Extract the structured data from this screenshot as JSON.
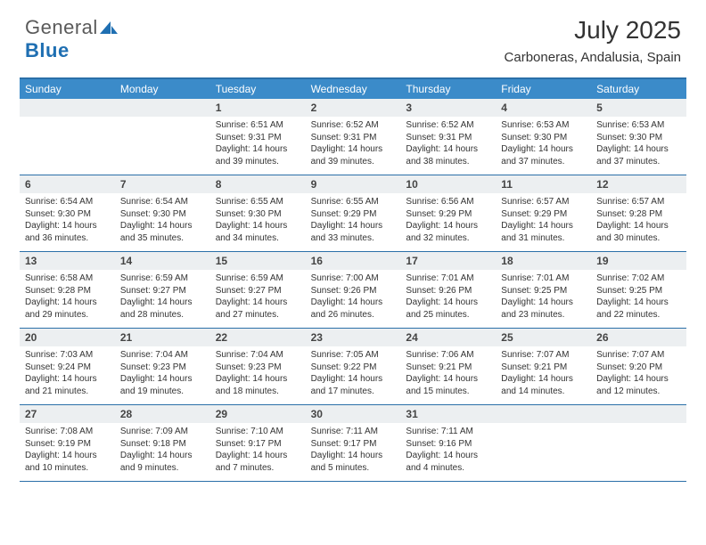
{
  "logo": {
    "text_gray": "General",
    "text_blue": "Blue",
    "icon_color": "#1f6fb2"
  },
  "title": "July 2025",
  "location": "Carboneras, Andalusia, Spain",
  "colors": {
    "header_bg": "#3b8bc9",
    "header_text": "#ffffff",
    "rule": "#2a6fa8",
    "daynum_bg": "#eceff1",
    "text": "#333333"
  },
  "day_names": [
    "Sunday",
    "Monday",
    "Tuesday",
    "Wednesday",
    "Thursday",
    "Friday",
    "Saturday"
  ],
  "weeks": [
    [
      {
        "n": "",
        "sr": "",
        "ss": "",
        "dl": ""
      },
      {
        "n": "",
        "sr": "",
        "ss": "",
        "dl": ""
      },
      {
        "n": "1",
        "sr": "Sunrise: 6:51 AM",
        "ss": "Sunset: 9:31 PM",
        "dl": "Daylight: 14 hours and 39 minutes."
      },
      {
        "n": "2",
        "sr": "Sunrise: 6:52 AM",
        "ss": "Sunset: 9:31 PM",
        "dl": "Daylight: 14 hours and 39 minutes."
      },
      {
        "n": "3",
        "sr": "Sunrise: 6:52 AM",
        "ss": "Sunset: 9:31 PM",
        "dl": "Daylight: 14 hours and 38 minutes."
      },
      {
        "n": "4",
        "sr": "Sunrise: 6:53 AM",
        "ss": "Sunset: 9:30 PM",
        "dl": "Daylight: 14 hours and 37 minutes."
      },
      {
        "n": "5",
        "sr": "Sunrise: 6:53 AM",
        "ss": "Sunset: 9:30 PM",
        "dl": "Daylight: 14 hours and 37 minutes."
      }
    ],
    [
      {
        "n": "6",
        "sr": "Sunrise: 6:54 AM",
        "ss": "Sunset: 9:30 PM",
        "dl": "Daylight: 14 hours and 36 minutes."
      },
      {
        "n": "7",
        "sr": "Sunrise: 6:54 AM",
        "ss": "Sunset: 9:30 PM",
        "dl": "Daylight: 14 hours and 35 minutes."
      },
      {
        "n": "8",
        "sr": "Sunrise: 6:55 AM",
        "ss": "Sunset: 9:30 PM",
        "dl": "Daylight: 14 hours and 34 minutes."
      },
      {
        "n": "9",
        "sr": "Sunrise: 6:55 AM",
        "ss": "Sunset: 9:29 PM",
        "dl": "Daylight: 14 hours and 33 minutes."
      },
      {
        "n": "10",
        "sr": "Sunrise: 6:56 AM",
        "ss": "Sunset: 9:29 PM",
        "dl": "Daylight: 14 hours and 32 minutes."
      },
      {
        "n": "11",
        "sr": "Sunrise: 6:57 AM",
        "ss": "Sunset: 9:29 PM",
        "dl": "Daylight: 14 hours and 31 minutes."
      },
      {
        "n": "12",
        "sr": "Sunrise: 6:57 AM",
        "ss": "Sunset: 9:28 PM",
        "dl": "Daylight: 14 hours and 30 minutes."
      }
    ],
    [
      {
        "n": "13",
        "sr": "Sunrise: 6:58 AM",
        "ss": "Sunset: 9:28 PM",
        "dl": "Daylight: 14 hours and 29 minutes."
      },
      {
        "n": "14",
        "sr": "Sunrise: 6:59 AM",
        "ss": "Sunset: 9:27 PM",
        "dl": "Daylight: 14 hours and 28 minutes."
      },
      {
        "n": "15",
        "sr": "Sunrise: 6:59 AM",
        "ss": "Sunset: 9:27 PM",
        "dl": "Daylight: 14 hours and 27 minutes."
      },
      {
        "n": "16",
        "sr": "Sunrise: 7:00 AM",
        "ss": "Sunset: 9:26 PM",
        "dl": "Daylight: 14 hours and 26 minutes."
      },
      {
        "n": "17",
        "sr": "Sunrise: 7:01 AM",
        "ss": "Sunset: 9:26 PM",
        "dl": "Daylight: 14 hours and 25 minutes."
      },
      {
        "n": "18",
        "sr": "Sunrise: 7:01 AM",
        "ss": "Sunset: 9:25 PM",
        "dl": "Daylight: 14 hours and 23 minutes."
      },
      {
        "n": "19",
        "sr": "Sunrise: 7:02 AM",
        "ss": "Sunset: 9:25 PM",
        "dl": "Daylight: 14 hours and 22 minutes."
      }
    ],
    [
      {
        "n": "20",
        "sr": "Sunrise: 7:03 AM",
        "ss": "Sunset: 9:24 PM",
        "dl": "Daylight: 14 hours and 21 minutes."
      },
      {
        "n": "21",
        "sr": "Sunrise: 7:04 AM",
        "ss": "Sunset: 9:23 PM",
        "dl": "Daylight: 14 hours and 19 minutes."
      },
      {
        "n": "22",
        "sr": "Sunrise: 7:04 AM",
        "ss": "Sunset: 9:23 PM",
        "dl": "Daylight: 14 hours and 18 minutes."
      },
      {
        "n": "23",
        "sr": "Sunrise: 7:05 AM",
        "ss": "Sunset: 9:22 PM",
        "dl": "Daylight: 14 hours and 17 minutes."
      },
      {
        "n": "24",
        "sr": "Sunrise: 7:06 AM",
        "ss": "Sunset: 9:21 PM",
        "dl": "Daylight: 14 hours and 15 minutes."
      },
      {
        "n": "25",
        "sr": "Sunrise: 7:07 AM",
        "ss": "Sunset: 9:21 PM",
        "dl": "Daylight: 14 hours and 14 minutes."
      },
      {
        "n": "26",
        "sr": "Sunrise: 7:07 AM",
        "ss": "Sunset: 9:20 PM",
        "dl": "Daylight: 14 hours and 12 minutes."
      }
    ],
    [
      {
        "n": "27",
        "sr": "Sunrise: 7:08 AM",
        "ss": "Sunset: 9:19 PM",
        "dl": "Daylight: 14 hours and 10 minutes."
      },
      {
        "n": "28",
        "sr": "Sunrise: 7:09 AM",
        "ss": "Sunset: 9:18 PM",
        "dl": "Daylight: 14 hours and 9 minutes."
      },
      {
        "n": "29",
        "sr": "Sunrise: 7:10 AM",
        "ss": "Sunset: 9:17 PM",
        "dl": "Daylight: 14 hours and 7 minutes."
      },
      {
        "n": "30",
        "sr": "Sunrise: 7:11 AM",
        "ss": "Sunset: 9:17 PM",
        "dl": "Daylight: 14 hours and 5 minutes."
      },
      {
        "n": "31",
        "sr": "Sunrise: 7:11 AM",
        "ss": "Sunset: 9:16 PM",
        "dl": "Daylight: 14 hours and 4 minutes."
      },
      {
        "n": "",
        "sr": "",
        "ss": "",
        "dl": ""
      },
      {
        "n": "",
        "sr": "",
        "ss": "",
        "dl": ""
      }
    ]
  ]
}
